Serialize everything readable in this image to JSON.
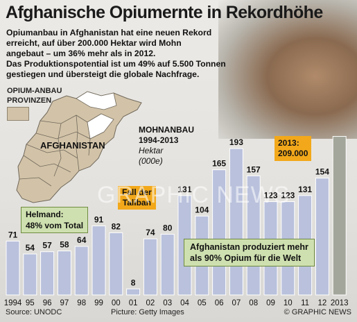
{
  "header": {
    "title": "Afghanische Opiumernte in Rekordhöhe",
    "intro_lines": [
      "Opiumanbau in Afghanistan hat eine neuen Rekord",
      "erreicht, auf über 200.000 Hektar wird Mohn",
      "angebaut – um 36% mehr als in 2012.",
      "Das Produktionspotential ist um 49% auf 5.500 Tonnen",
      "gestiegen und übersteigt die globale Nachfrage."
    ]
  },
  "legend": {
    "line1": "OPIUM-ANBAU",
    "line2": "PROVINZEN",
    "swatch_color": "#d2c3a8"
  },
  "map": {
    "label": "AFGHANISTAN"
  },
  "helmand": {
    "line1": "Helmand:",
    "line2": "48% vom Total"
  },
  "chart_data": {
    "type": "bar",
    "title": "MOHNANBAU 1994-2013",
    "unit_line1": "Hektar",
    "unit_line2": "(000e)",
    "categories": [
      "1994",
      "95",
      "96",
      "97",
      "98",
      "99",
      "00",
      "01",
      "02",
      "03",
      "04",
      "05",
      "06",
      "07",
      "08",
      "09",
      "10",
      "11",
      "12",
      "2013"
    ],
    "values": [
      71,
      54,
      57,
      58,
      64,
      91,
      82,
      8,
      74,
      80,
      131,
      104,
      165,
      193,
      157,
      123,
      123,
      131,
      154,
      209
    ],
    "bar_color": "#b9c1dc",
    "highlight_color": "#a3a69a",
    "ylim": [
      0,
      215
    ]
  },
  "callouts": {
    "y2013_line1": "2013:",
    "y2013_line2": "209.000",
    "taliban_line1": "Fall der",
    "taliban_line2": "Taliban",
    "note_line1": "Afghanistan produziert mehr",
    "note_line2": "als 90% Opium für die Welt"
  },
  "footer": {
    "source": "Source: UNODC",
    "picture": "Picture: Getty Images",
    "brand": "© GRAPHIC NEWS"
  },
  "watermark": "GRAPHIC NEWS"
}
